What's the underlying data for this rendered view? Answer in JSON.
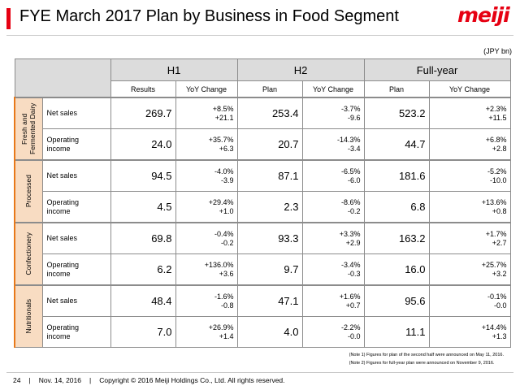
{
  "title": "FYE March 2017 Plan by Business in Food Segment",
  "logo_text": "meiji",
  "unit": "(JPY bn)",
  "periods": {
    "h1": "H1",
    "h2": "H2",
    "fy": "Full-year"
  },
  "subheaders": {
    "h1_results": "Results",
    "h1_yoy": "YoY Change",
    "h2_plan": "Plan",
    "h2_yoy": "YoY Change",
    "fy_plan": "Plan",
    "fy_yoy": "YoY Change"
  },
  "segments": [
    {
      "name": "Fresh and Fermented Dairy",
      "rows": [
        {
          "item": [
            "Net sales"
          ],
          "h1": "269.7",
          "h1_pct": "+8.5%",
          "h1_abs": "+21.1",
          "h2": "253.4",
          "h2_pct": "-3.7%",
          "h2_abs": "-9.6",
          "fy": "523.2",
          "fy_pct": "+2.3%",
          "fy_abs": "+11.5"
        },
        {
          "item": [
            "Operating",
            "income"
          ],
          "h1": "24.0",
          "h1_pct": "+35.7%",
          "h1_abs": "+6.3",
          "h2": "20.7",
          "h2_pct": "-14.3%",
          "h2_abs": "-3.4",
          "fy": "44.7",
          "fy_pct": "+6.8%",
          "fy_abs": "+2.8"
        }
      ]
    },
    {
      "name": "Processed",
      "rows": [
        {
          "item": [
            "Net sales"
          ],
          "h1": "94.5",
          "h1_pct": "-4.0%",
          "h1_abs": "-3.9",
          "h2": "87.1",
          "h2_pct": "-6.5%",
          "h2_abs": "-6.0",
          "fy": "181.6",
          "fy_pct": "-5.2%",
          "fy_abs": "-10.0"
        },
        {
          "item": [
            "Operating",
            "income"
          ],
          "h1": "4.5",
          "h1_pct": "+29.4%",
          "h1_abs": "+1.0",
          "h2": "2.3",
          "h2_pct": "-8.6%",
          "h2_abs": "-0.2",
          "fy": "6.8",
          "fy_pct": "+13.6%",
          "fy_abs": "+0.8"
        }
      ]
    },
    {
      "name": "Confectionery",
      "rows": [
        {
          "item": [
            "Net sales"
          ],
          "h1": "69.8",
          "h1_pct": "-0.4%",
          "h1_abs": "-0.2",
          "h2": "93.3",
          "h2_pct": "+3.3%",
          "h2_abs": "+2.9",
          "fy": "163.2",
          "fy_pct": "+1.7%",
          "fy_abs": "+2.7"
        },
        {
          "item": [
            "Operating",
            "income"
          ],
          "h1": "6.2",
          "h1_pct": "+136.0%",
          "h1_abs": "+3.6",
          "h2": "9.7",
          "h2_pct": "-3.4%",
          "h2_abs": "-0.3",
          "fy": "16.0",
          "fy_pct": "+25.7%",
          "fy_abs": "+3.2"
        }
      ]
    },
    {
      "name": "Nutritionals",
      "rows": [
        {
          "item": [
            "Net sales"
          ],
          "h1": "48.4",
          "h1_pct": "-1.6%",
          "h1_abs": "-0.8",
          "h2": "47.1",
          "h2_pct": "+1.6%",
          "h2_abs": "+0.7",
          "fy": "95.6",
          "fy_pct": "-0.1%",
          "fy_abs": "-0.0"
        },
        {
          "item": [
            "Operating",
            "income"
          ],
          "h1": "7.0",
          "h1_pct": "+26.9%",
          "h1_abs": "+1.4",
          "h2": "4.0",
          "h2_pct": "-2.2%",
          "h2_abs": "-0.0",
          "fy": "11.1",
          "fy_pct": "+14.4%",
          "fy_abs": "+1.3"
        }
      ]
    }
  ],
  "notes": [
    "(Note 1) Figures for plan of the second half  were announced on May 11, 2016.",
    "(Note 2) Figures for full-year plan were announced on November 9, 2016."
  ],
  "footer": {
    "page": "24",
    "date": "Nov. 14, 2016",
    "copyright": "Copyright © 2016 Meiji Holdings Co., Ltd. All rights reserved."
  },
  "colors": {
    "accent": "#e60012",
    "segment_fill": "#f8dcc2",
    "segment_edge": "#e8791a",
    "header_fill": "#dcdcdc"
  }
}
